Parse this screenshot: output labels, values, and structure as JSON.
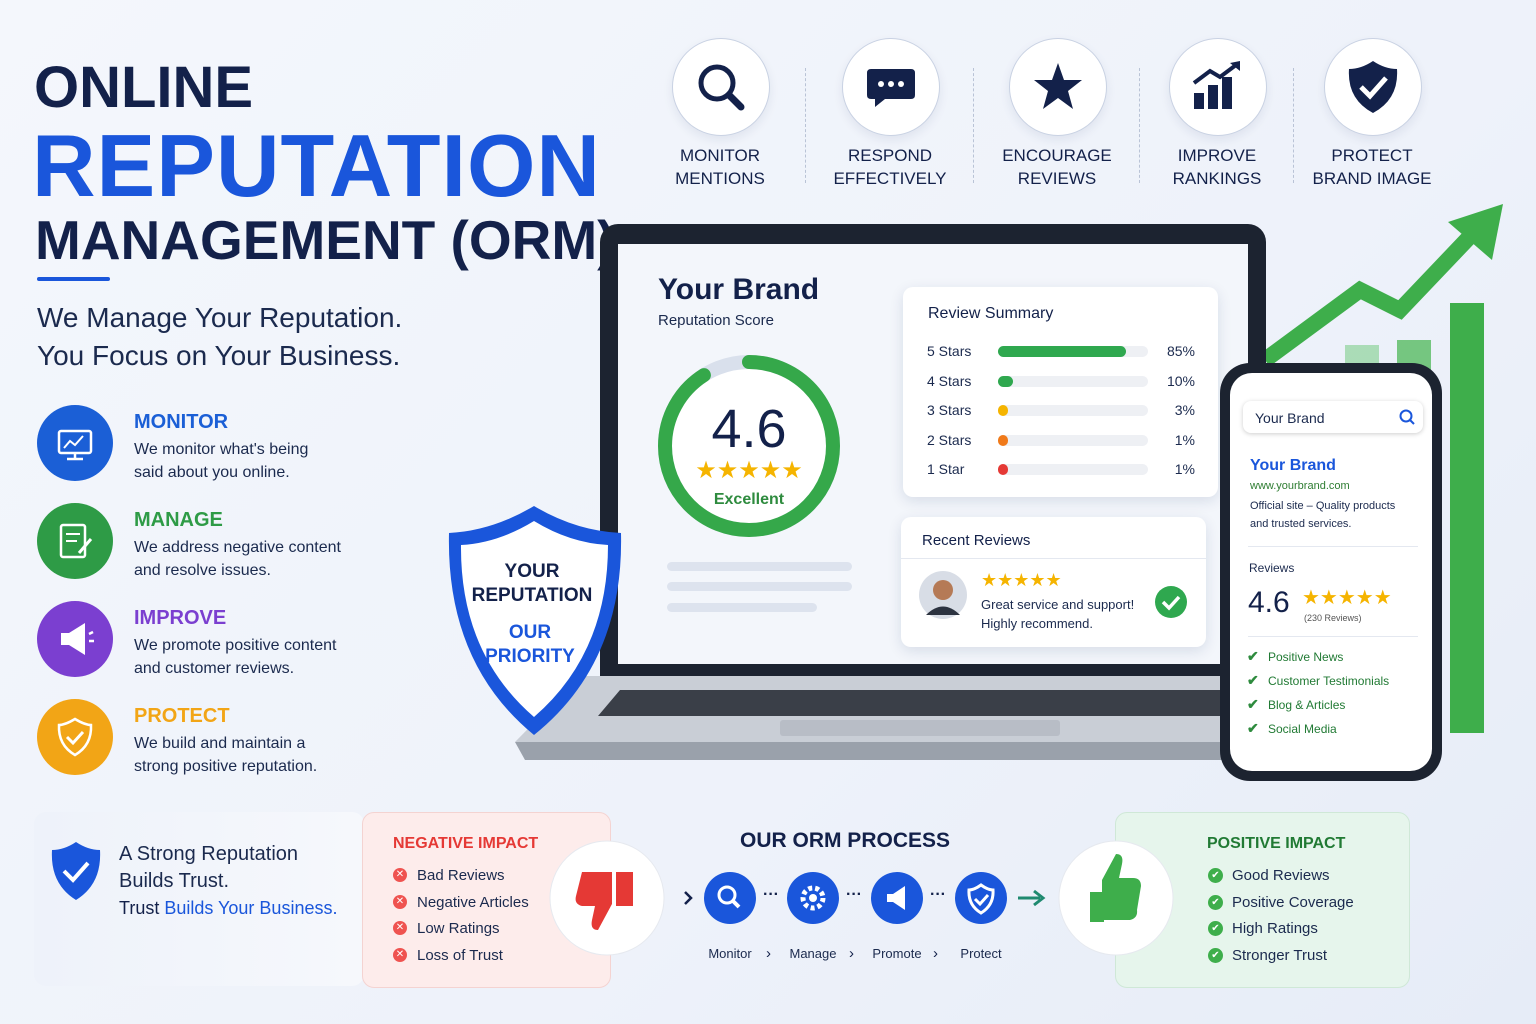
{
  "header": {
    "line1": "ONLINE",
    "line2": "REPUTATION",
    "line3": "MANAGEMENT (ORM)",
    "tagline1": "We Manage Your Reputation.",
    "tagline2": "You Focus on Your Business."
  },
  "top_icons": [
    {
      "line1": "MONITOR",
      "line2": "MENTIONS"
    },
    {
      "line1": "RESPOND",
      "line2": "EFFECTIVELY"
    },
    {
      "line1": "ENCOURAGE",
      "line2": "REVIEWS"
    },
    {
      "line1": "IMPROVE",
      "line2": "RANKINGS"
    },
    {
      "line1": "PROTECT",
      "line2": "BRAND IMAGE"
    }
  ],
  "features": [
    {
      "title": "MONITOR",
      "text1": "We monitor what's being",
      "text2": "said about you online.",
      "color": "#1b5fd6"
    },
    {
      "title": "MANAGE",
      "text1": "We address negative content",
      "text2": "and resolve issues.",
      "color": "#2e9b46"
    },
    {
      "title": "IMPROVE",
      "text1": "We promote positive content",
      "text2": "and customer reviews.",
      "color": "#7b3fd0"
    },
    {
      "title": "PROTECT",
      "text1": "We build and maintain a",
      "text2": "strong positive reputation.",
      "color": "#f2a516"
    }
  ],
  "dashboard": {
    "brand": "Your Brand",
    "score_label": "Reputation Score",
    "score": "4.6",
    "score_text": "Excellent",
    "summary_title": "Review Summary",
    "rows": [
      {
        "label": "5 Stars",
        "value": 85,
        "value_label": "85%",
        "color": "#2fa84f"
      },
      {
        "label": "4 Stars",
        "value": 10,
        "value_label": "10%",
        "color": "#2fa84f"
      },
      {
        "label": "3 Stars",
        "value": 3,
        "value_label": "3%",
        "color": "#f5b400"
      },
      {
        "label": "2 Stars",
        "value": 1,
        "value_label": "1%",
        "color": "#f07a1a"
      },
      {
        "label": "1 Star",
        "value": 1,
        "value_label": "1%",
        "color": "#e53935"
      }
    ],
    "recent_title": "Recent Reviews",
    "review_line1": "Great service and support!",
    "review_line2": "Highly recommend."
  },
  "shield": {
    "line1": "YOUR",
    "line2": "REPUTATION",
    "line3": "OUR",
    "line4": "PRIORITY"
  },
  "phone": {
    "search": "Your Brand",
    "title": "Your Brand",
    "url": "www.yourbrand.com",
    "desc1": "Official site – Quality products",
    "desc2": "and trusted services.",
    "reviews_label": "Reviews",
    "rating": "4.6",
    "count": "(230 Reviews)",
    "items": [
      "Positive News",
      "Customer Testimonials",
      "Blog & Articles",
      "Social Media"
    ]
  },
  "trust": {
    "line1": "A Strong Reputation",
    "line2": "Builds Trust.",
    "line3a": "Trust",
    "line3b": "Builds Your Business."
  },
  "negative": {
    "title": "NEGATIVE IMPACT",
    "items": [
      "Bad Reviews",
      "Negative Articles",
      "Low Ratings",
      "Loss of Trust"
    ]
  },
  "process": {
    "title": "OUR ORM PROCESS",
    "steps": [
      "Monitor",
      "Manage",
      "Promote",
      "Protect"
    ]
  },
  "positive": {
    "title": "POSITIVE IMPACT",
    "items": [
      "Good Reviews",
      "Positive Coverage",
      "High Ratings",
      "Stronger Trust"
    ]
  }
}
